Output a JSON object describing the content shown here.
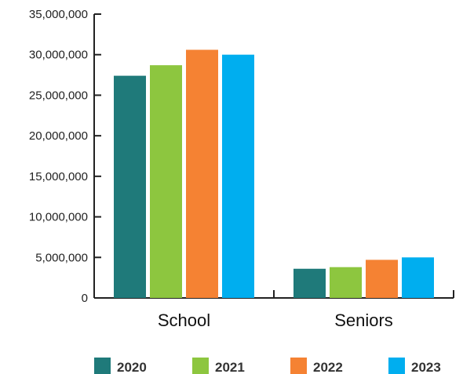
{
  "chart_data": {
    "type": "bar",
    "title": "",
    "xlabel": "",
    "ylabel": "",
    "categories": [
      "School",
      "Seniors"
    ],
    "ylim": [
      0,
      35000000
    ],
    "yticks": [
      0,
      5000000,
      10000000,
      15000000,
      20000000,
      25000000,
      30000000,
      35000000
    ],
    "ytick_labels": [
      "0",
      "5,000,000",
      "10,000,000",
      "15,000,000",
      "20,000,000",
      "25,000,000",
      "30,000,000",
      "35,000,000"
    ],
    "series": [
      {
        "name": "2020",
        "color": "#1f7a7a",
        "values": [
          27400000,
          3600000
        ]
      },
      {
        "name": "2021",
        "color": "#8dc63f",
        "values": [
          28700000,
          3800000
        ]
      },
      {
        "name": "2022",
        "color": "#f58233",
        "values": [
          30600000,
          4700000
        ]
      },
      {
        "name": "2023",
        "color": "#00aeef",
        "values": [
          30000000,
          5000000
        ]
      }
    ],
    "legend_position": "bottom",
    "grid": false
  }
}
